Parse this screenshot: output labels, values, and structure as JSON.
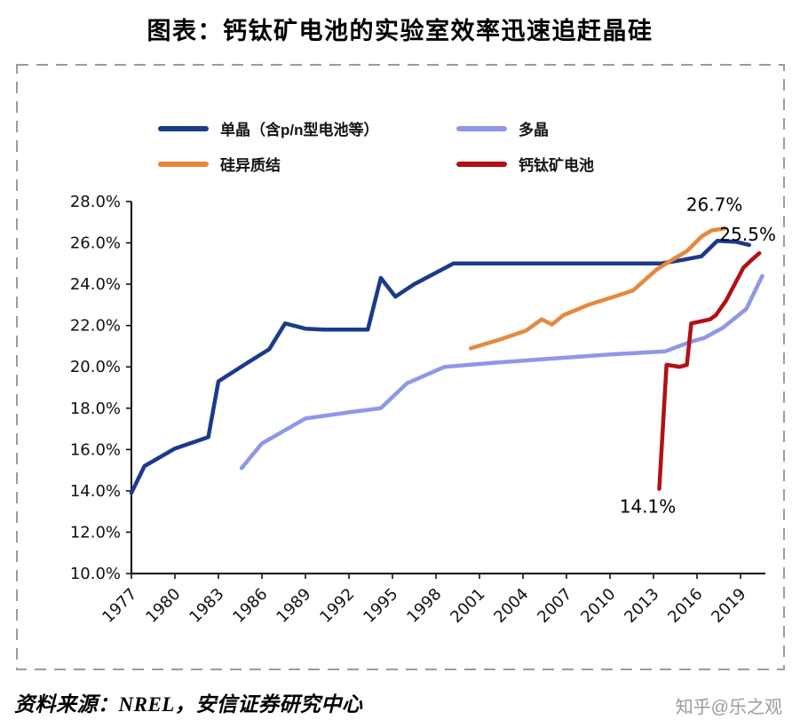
{
  "header": {
    "title": "图表：钙钛矿电池的实验室效率迅速追赶晶硅"
  },
  "footer": {
    "source": "资料来源：NREL，安信证券研究中心",
    "watermark": "知乎@乐之观"
  },
  "colors": {
    "mono": "#1b3a8c",
    "poly": "#8f97e8",
    "hjt": "#e8883c",
    "perovskite": "#b21014",
    "axis": "#000000",
    "frame_dash": "#9c9c9c"
  },
  "chart_data": {
    "type": "line",
    "title": "图表：钙钛矿电池的实验室效率迅速追赶晶硅",
    "xlabel": "",
    "ylabel": "",
    "grid": false,
    "legend_position": "top-left",
    "ylim": [
      10,
      28
    ],
    "xlim": [
      1977,
      2019
    ],
    "yticks": [
      {
        "value": 10,
        "label": "10.0%"
      },
      {
        "value": 12,
        "label": "12.0%"
      },
      {
        "value": 14,
        "label": "14.0%"
      },
      {
        "value": 16,
        "label": "16.0%"
      },
      {
        "value": 18,
        "label": "18.0%"
      },
      {
        "value": 20,
        "label": "20.0%"
      },
      {
        "value": 22,
        "label": "22.0%"
      },
      {
        "value": 24,
        "label": "24.0%"
      },
      {
        "value": 26,
        "label": "26.0%"
      },
      {
        "value": 28,
        "label": "28.0%"
      }
    ],
    "xticks": [
      {
        "value": 1977,
        "label": "1977"
      },
      {
        "value": 1980,
        "label": "1980"
      },
      {
        "value": 1983,
        "label": "1983"
      },
      {
        "value": 1986,
        "label": "1986"
      },
      {
        "value": 1989,
        "label": "1989"
      },
      {
        "value": 1992,
        "label": "1992"
      },
      {
        "value": 1995,
        "label": "1995"
      },
      {
        "value": 1998,
        "label": "1998"
      },
      {
        "value": 2001,
        "label": "2001"
      },
      {
        "value": 2004,
        "label": "2004"
      },
      {
        "value": 2007,
        "label": "2007"
      },
      {
        "value": 2010,
        "label": "2010"
      },
      {
        "value": 2013,
        "label": "2013"
      },
      {
        "value": 2016,
        "label": "2016"
      },
      {
        "value": 2019,
        "label": "2019"
      }
    ],
    "series": [
      {
        "name": "单晶（含p/n型电池等）",
        "color": "#1b3a8c",
        "points": [
          [
            1977.0,
            13.9
          ],
          [
            1977.9,
            15.2
          ],
          [
            1980.0,
            16.05
          ],
          [
            1982.3,
            16.6
          ],
          [
            1983.0,
            19.3
          ],
          [
            1985.0,
            20.2
          ],
          [
            1986.5,
            20.85
          ],
          [
            1987.6,
            22.1
          ],
          [
            1989.0,
            21.85
          ],
          [
            1990.3,
            21.8
          ],
          [
            1993.3,
            21.8
          ],
          [
            1994.2,
            24.3
          ],
          [
            1995.2,
            23.4
          ],
          [
            1996.5,
            24.0
          ],
          [
            1999.2,
            25.0
          ],
          [
            2013.5,
            25.0
          ],
          [
            2015.2,
            25.2
          ],
          [
            2016.3,
            25.35
          ],
          [
            2017.4,
            26.1
          ],
          [
            2018.7,
            26.05
          ],
          [
            2019.6,
            25.9
          ]
        ]
      },
      {
        "name": "多晶",
        "color": "#8f97e8",
        "points": [
          [
            1984.6,
            15.1
          ],
          [
            1986.0,
            16.3
          ],
          [
            1989.0,
            17.5
          ],
          [
            1992.0,
            17.8
          ],
          [
            1994.2,
            18.0
          ],
          [
            1996.0,
            19.2
          ],
          [
            1998.6,
            20.0
          ],
          [
            2002.0,
            20.2
          ],
          [
            2006.0,
            20.4
          ],
          [
            2010.0,
            20.6
          ],
          [
            2013.8,
            20.75
          ],
          [
            2015.5,
            21.2
          ],
          [
            2016.5,
            21.4
          ],
          [
            2017.8,
            21.9
          ],
          [
            2019.4,
            22.8
          ],
          [
            2020.5,
            24.4
          ]
        ]
      },
      {
        "name": "硅异质结",
        "color": "#e8883c",
        "points": [
          [
            2000.4,
            20.9
          ],
          [
            2002.3,
            21.3
          ],
          [
            2004.2,
            21.75
          ],
          [
            2005.3,
            22.3
          ],
          [
            2006.0,
            22.05
          ],
          [
            2006.8,
            22.5
          ],
          [
            2008.5,
            23.0
          ],
          [
            2010.3,
            23.4
          ],
          [
            2011.6,
            23.7
          ],
          [
            2013.2,
            24.7
          ],
          [
            2014.1,
            25.1
          ],
          [
            2015.3,
            25.6
          ],
          [
            2016.3,
            26.3
          ],
          [
            2017.0,
            26.6
          ],
          [
            2017.9,
            26.7
          ]
        ]
      },
      {
        "name": "钙钛矿电池",
        "color": "#b21014",
        "points": [
          [
            2013.4,
            14.1
          ],
          [
            2013.9,
            20.1
          ],
          [
            2014.8,
            20.0
          ],
          [
            2015.3,
            20.1
          ],
          [
            2015.6,
            22.1
          ],
          [
            2016.9,
            22.3
          ],
          [
            2017.3,
            22.5
          ],
          [
            2018.0,
            23.2
          ],
          [
            2019.2,
            24.8
          ],
          [
            2019.8,
            25.2
          ],
          [
            2020.3,
            25.5
          ]
        ]
      }
    ],
    "annotations": [
      {
        "text": "26.7%",
        "x": 2017.2,
        "y": 27.55
      },
      {
        "text": "25.5%",
        "x": 2019.5,
        "y": 26.1
      },
      {
        "text": "14.1%",
        "x": 2012.6,
        "y": 12.95
      }
    ]
  }
}
